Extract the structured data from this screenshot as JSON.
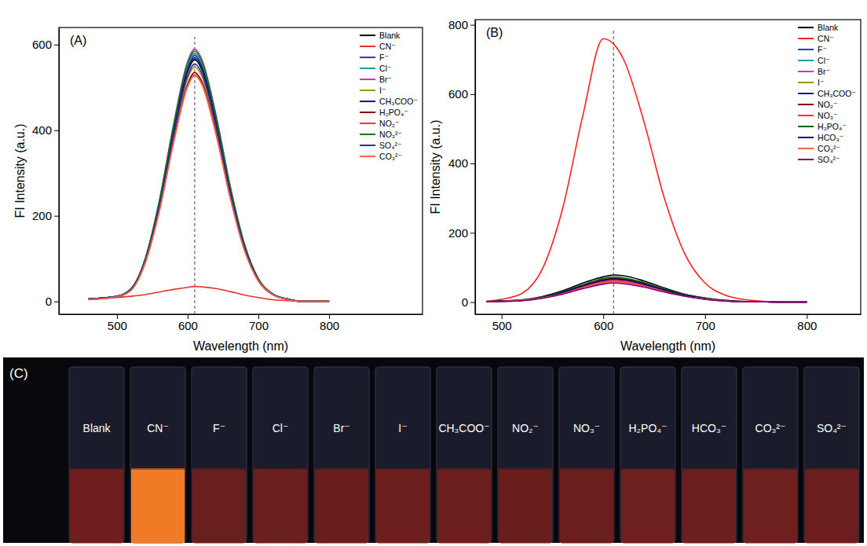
{
  "chart_data": [
    {
      "type": "line",
      "label": "(A)",
      "x_label": "Wavelength (nm)",
      "y_label": "FI Intensity (a.u.)",
      "xlim": [
        418,
        932
      ],
      "ylim": [
        -30,
        640
      ],
      "xticks": [
        500,
        600,
        700,
        800
      ],
      "yticks": [
        0,
        200,
        400,
        600
      ],
      "legend": "upper right",
      "vline": 610,
      "x": [
        460,
        500,
        520,
        540,
        560,
        580,
        600,
        610,
        620,
        640,
        660,
        680,
        700,
        720,
        740,
        760,
        800
      ],
      "series": [
        {
          "name": "Blank",
          "color": "#000000",
          "values": [
            6,
            11,
            28,
            96,
            226,
            396,
            537,
            565,
            542,
            418,
            260,
            130,
            51,
            17,
            6,
            0,
            0
          ]
        },
        {
          "name": "CN⁻",
          "color": "#e8322a",
          "values": [
            4,
            9,
            12,
            16,
            22,
            28,
            33,
            35,
            34,
            30,
            23,
            15,
            9,
            4,
            2,
            0,
            0
          ]
        },
        {
          "name": "F⁻",
          "color": "#3333cc",
          "values": [
            6,
            12,
            29,
            98,
            230,
            403,
            546,
            575,
            552,
            426,
            265,
            132,
            52,
            17,
            6,
            0,
            0
          ]
        },
        {
          "name": "Cl⁻",
          "color": "#1f9f9f",
          "values": [
            6,
            12,
            29,
            99,
            232,
            406,
            551,
            580,
            557,
            429,
            267,
            133,
            52,
            17,
            6,
            0,
            0
          ]
        },
        {
          "name": "Br⁻",
          "color": "#cc33cc",
          "values": [
            6,
            12,
            30,
            100,
            236,
            413,
            561,
            590,
            566,
            437,
            271,
            136,
            53,
            18,
            6,
            0,
            0
          ]
        },
        {
          "name": "I⁻",
          "color": "#999900",
          "values": [
            5,
            11,
            27,
            93,
            219,
            384,
            521,
            548,
            526,
            406,
            252,
            126,
            49,
            16,
            5,
            0,
            0
          ]
        },
        {
          "name": "CH₃COO⁻",
          "color": "#1a1a80",
          "values": [
            6,
            11,
            29,
            97,
            228,
            399,
            542,
            570,
            547,
            422,
            262,
            131,
            51,
            17,
            6,
            0,
            0
          ]
        },
        {
          "name": "H₂PO₄⁻",
          "color": "#800000",
          "values": [
            5,
            11,
            27,
            91,
            214,
            375,
            508,
            535,
            514,
            396,
            246,
            123,
            48,
            16,
            5,
            0,
            0
          ]
        },
        {
          "name": "NO₂⁻",
          "color": "#ff3333",
          "values": [
            5,
            11,
            27,
            90,
            212,
            371,
            504,
            530,
            509,
            392,
            244,
            122,
            48,
            16,
            5,
            0,
            0
          ]
        },
        {
          "name": "NO₃²⁻",
          "color": "#008000",
          "values": [
            6,
            12,
            29,
            99,
            234,
            410,
            556,
            585,
            562,
            433,
            269,
            135,
            53,
            18,
            6,
            0,
            0
          ]
        },
        {
          "name": "SO₄²⁻",
          "color": "#2a2aa8",
          "values": [
            6,
            11,
            28,
            94,
            222,
            389,
            527,
            555,
            533,
            411,
            255,
            128,
            50,
            17,
            6,
            0,
            0
          ]
        },
        {
          "name": "CO₃²⁻",
          "color": "#ff6347",
          "values": [
            5,
            11,
            26,
            90,
            211,
            370,
            502,
            528,
            507,
            391,
            243,
            121,
            48,
            16,
            5,
            0,
            0
          ]
        }
      ]
    },
    {
      "type": "line",
      "label": "(B)",
      "x_label": "Wavelength (nm)",
      "y_label": "FI Intensity (a.u.)",
      "xlim": [
        474,
        853
      ],
      "ylim": [
        -35,
        815
      ],
      "xticks": [
        500,
        600,
        700,
        800
      ],
      "yticks": [
        0,
        200,
        400,
        600,
        800
      ],
      "legend": "upper right",
      "vline": 610,
      "x": [
        485,
        500,
        520,
        540,
        560,
        580,
        600,
        610,
        620,
        640,
        660,
        680,
        700,
        720,
        740,
        760,
        780,
        800
      ],
      "series": [
        {
          "name": "Blank",
          "color": "#000000",
          "values": [
            2,
            3,
            6,
            16,
            33,
            55,
            73,
            78,
            76,
            61,
            41,
            23,
            12,
            5,
            2,
            1,
            0,
            0
          ]
        },
        {
          "name": "CN⁻",
          "color": "#ff2020",
          "values": [
            3,
            8,
            25,
            95,
            270,
            540,
            760,
            745,
            700,
            520,
            300,
            140,
            55,
            20,
            7,
            2,
            0,
            0
          ]
        },
        {
          "name": "F⁻",
          "color": "#3333cc",
          "values": [
            1,
            2,
            5,
            12,
            26,
            43,
            58,
            62,
            60,
            48,
            32,
            19,
            9,
            4,
            1,
            1,
            0,
            0
          ]
        },
        {
          "name": "Cl⁻",
          "color": "#1f9f9f",
          "values": [
            1,
            3,
            5,
            13,
            27,
            45,
            60,
            64,
            62,
            50,
            33,
            19,
            10,
            4,
            1,
            1,
            0,
            0
          ]
        },
        {
          "name": "Br⁻",
          "color": "#cc33cc",
          "values": [
            1,
            2,
            5,
            12,
            25,
            42,
            56,
            60,
            58,
            47,
            31,
            18,
            9,
            4,
            1,
            1,
            0,
            0
          ]
        },
        {
          "name": "I⁻",
          "color": "#999900",
          "values": [
            1,
            3,
            6,
            14,
            29,
            49,
            66,
            70,
            68,
            55,
            36,
            21,
            11,
            4,
            1,
            1,
            0,
            0
          ]
        },
        {
          "name": "CH₃COO⁻",
          "color": "#1a1a80",
          "values": [
            1,
            3,
            5,
            13,
            28,
            46,
            62,
            66,
            64,
            51,
            34,
            20,
            10,
            4,
            1,
            1,
            0,
            0
          ]
        },
        {
          "name": "NO₂⁻",
          "color": "#800000",
          "values": [
            1,
            3,
            5,
            14,
            29,
            48,
            64,
            68,
            66,
            53,
            35,
            20,
            10,
            4,
            1,
            1,
            0,
            0
          ]
        },
        {
          "name": "NO₃⁻",
          "color": "#ff3333",
          "values": [
            1,
            3,
            5,
            13,
            26,
            44,
            59,
            63,
            61,
            49,
            33,
            19,
            9,
            4,
            1,
            1,
            0,
            0
          ]
        },
        {
          "name": "H₂PO₄⁻",
          "color": "#006400",
          "values": [
            1,
            3,
            6,
            14,
            30,
            50,
            68,
            72,
            70,
            56,
            37,
            22,
            11,
            4,
            1,
            1,
            0,
            0
          ]
        },
        {
          "name": "HCO₃⁻",
          "color": "#000080",
          "values": [
            1,
            3,
            5,
            13,
            28,
            47,
            63,
            67,
            65,
            52,
            35,
            20,
            10,
            4,
            1,
            1,
            0,
            0
          ]
        },
        {
          "name": "CO₃²⁻",
          "color": "#ff6347",
          "values": [
            1,
            2,
            5,
            12,
            24,
            41,
            55,
            58,
            56,
            45,
            30,
            17,
            9,
            3,
            1,
            1,
            0,
            0
          ]
        },
        {
          "name": "SO₄²⁻",
          "color": "#800080",
          "values": [
            1,
            2,
            4,
            11,
            23,
            39,
            52,
            55,
            53,
            43,
            29,
            17,
            8,
            3,
            1,
            1,
            0,
            0
          ]
        }
      ]
    }
  ],
  "photo": {
    "label": "(C)",
    "vials": [
      "Blank",
      "CN⁻",
      "F⁻",
      "Cl⁻",
      "Br⁻",
      "I⁻",
      "CH₃COO⁻",
      "NO₂⁻",
      "NO₃⁻",
      "H₂PO₄⁻",
      "HCO₃⁻",
      "CO₃²⁻",
      "SO₄²⁻"
    ],
    "colors": [
      "#6e1f1d",
      "#f07a26",
      "#6a1e1d",
      "#6b1f1e",
      "#6a1d1c",
      "#6c1f1d",
      "#6b1e1d",
      "#6a1e1c",
      "#6b1f1d",
      "#6d201e",
      "#6c1f1e",
      "#6e201e",
      "#6b1e1d"
    ]
  }
}
